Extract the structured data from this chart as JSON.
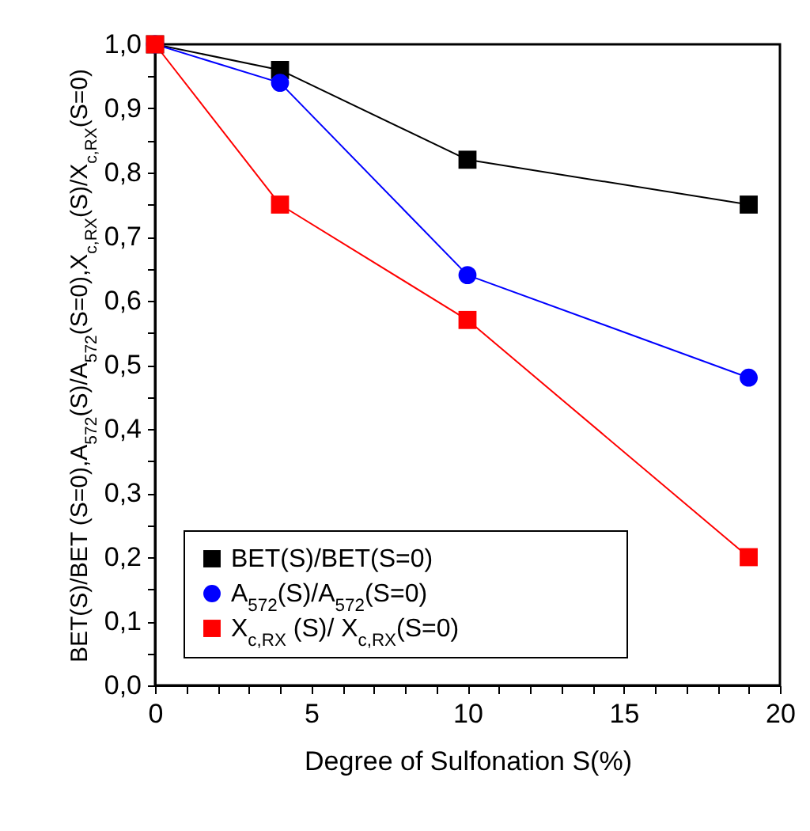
{
  "chart_data": {
    "type": "line",
    "xlabel": "Degree of Sulfonation S(%)",
    "ylabel": "BET(S)/BET (S=0),A$_{572}$(S)/A$_{572}$(S=0),X$_{c,RX}$(S)/X$_{c,RX}$(S=0)",
    "x": [
      0,
      4,
      10,
      19
    ],
    "series": [
      {
        "name": "BET(S)/BET(S=0)",
        "color": "#000000",
        "marker": "square",
        "values": [
          1.0,
          0.96,
          0.82,
          0.75
        ]
      },
      {
        "name": "A$_{572}$(S)/A$_{572}$(S=0)",
        "color": "#0000ff",
        "marker": "circle",
        "values": [
          1.0,
          0.94,
          0.64,
          0.48
        ]
      },
      {
        "name": "X$_{c,RX}$ (S)/ X$_{c,RX}$(S=0)",
        "color": "#ff0000",
        "marker": "square",
        "values": [
          1.0,
          0.75,
          0.57,
          0.2
        ]
      }
    ],
    "xlim": [
      0,
      20
    ],
    "xticks": [
      0,
      {
        "value": 1,
        "label": null
      },
      {
        "value": 2,
        "label": null
      },
      {
        "value": 3,
        "label": null
      },
      {
        "value": 4,
        "label": null
      },
      5,
      {
        "value": 6,
        "label": null
      },
      {
        "value": 7,
        "label": null
      },
      {
        "value": 8,
        "label": null
      },
      {
        "value": 9,
        "label": null
      },
      10,
      {
        "value": 11,
        "label": null
      },
      {
        "value": 12,
        "label": null
      },
      {
        "value": 13,
        "label": null
      },
      {
        "value": 14,
        "label": null
      },
      15,
      {
        "value": 16,
        "label": null
      },
      {
        "value": 17,
        "label": null
      },
      {
        "value": 18,
        "label": null
      },
      {
        "value": 19,
        "label": null
      },
      20
    ],
    "ylim": [
      0,
      1.0
    ],
    "yticks": [
      {
        "value": 0,
        "label": "0,0"
      },
      {
        "value": 0.05,
        "label": null
      },
      {
        "value": 0.1,
        "label": "0,1"
      },
      {
        "value": 0.15,
        "label": null
      },
      {
        "value": 0.2,
        "label": "0,2"
      },
      {
        "value": 0.25,
        "label": null
      },
      {
        "value": 0.3,
        "label": "0,3"
      },
      {
        "value": 0.35,
        "label": null
      },
      {
        "value": 0.4,
        "label": "0,4"
      },
      {
        "value": 0.45,
        "label": null
      },
      {
        "value": 0.5,
        "label": "0,5"
      },
      {
        "value": 0.55,
        "label": null
      },
      {
        "value": 0.6,
        "label": "0,6"
      },
      {
        "value": 0.65,
        "label": null
      },
      {
        "value": 0.7,
        "label": "0,7"
      },
      {
        "value": 0.75,
        "label": null
      },
      {
        "value": 0.8,
        "label": "0,8"
      },
      {
        "value": 0.85,
        "label": null
      },
      {
        "value": 0.9,
        "label": "0,9"
      },
      {
        "value": 0.95,
        "label": null
      },
      {
        "value": 1.0,
        "label": "1,0"
      }
    ],
    "grid": false,
    "legend": "bottom left",
    "line_style": "solid"
  }
}
